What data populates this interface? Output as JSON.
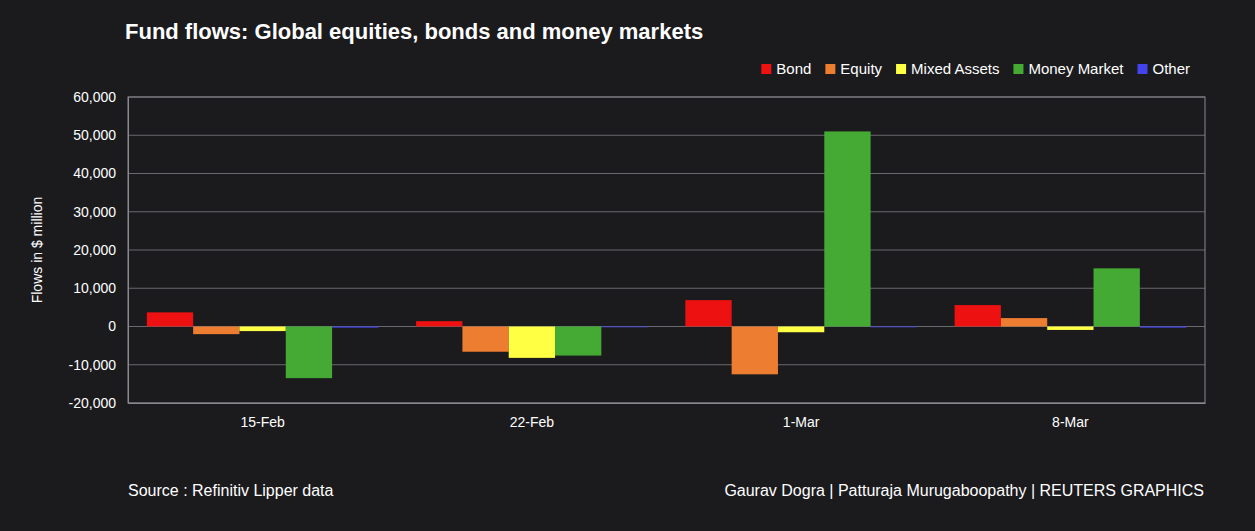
{
  "chart_data": {
    "type": "bar",
    "title": "Fund flows: Global equities, bonds and money markets",
    "y_label": "Flows in $ million",
    "annotations": [
      "Source : Refinitiv Lipper data",
      "Gaurav Dogra | Patturaja Murugaboopathy | REUTERS GRAPHICS"
    ],
    "categories": [
      "15-Feb",
      "22-Feb",
      "1-Mar",
      "8-Mar"
    ],
    "series": [
      {
        "name": "Bond",
        "color": "#ee1111",
        "values": [
          3700,
          1400,
          6900,
          5600
        ]
      },
      {
        "name": "Equity",
        "color": "#ed7d31",
        "values": [
          -2000,
          -6600,
          -12500,
          2200
        ]
      },
      {
        "name": "Mixed Assets",
        "color": "#ffff44",
        "values": [
          -1200,
          -8200,
          -1500,
          -900
        ]
      },
      {
        "name": "Money Market",
        "color": "#44aa33",
        "values": [
          -13500,
          -7600,
          51000,
          15200
        ]
      },
      {
        "name": "Other",
        "color": "#4444ee",
        "values": [
          -300,
          -200,
          -200,
          -300
        ]
      }
    ],
    "ylim": [
      -20000,
      60000
    ],
    "yticks": [
      {
        "value": -20000,
        "label": "-20,000"
      },
      {
        "value": -10000,
        "label": "-10,000"
      },
      0,
      {
        "value": 10000,
        "label": "10,000"
      },
      {
        "value": 20000,
        "label": "20,000"
      },
      {
        "value": 30000,
        "label": "30,000"
      },
      {
        "value": 40000,
        "label": "40,000"
      },
      {
        "value": 50000,
        "label": "50,000"
      },
      {
        "value": 60000,
        "label": "60,000"
      }
    ],
    "grid": true,
    "legend": "top-right"
  }
}
